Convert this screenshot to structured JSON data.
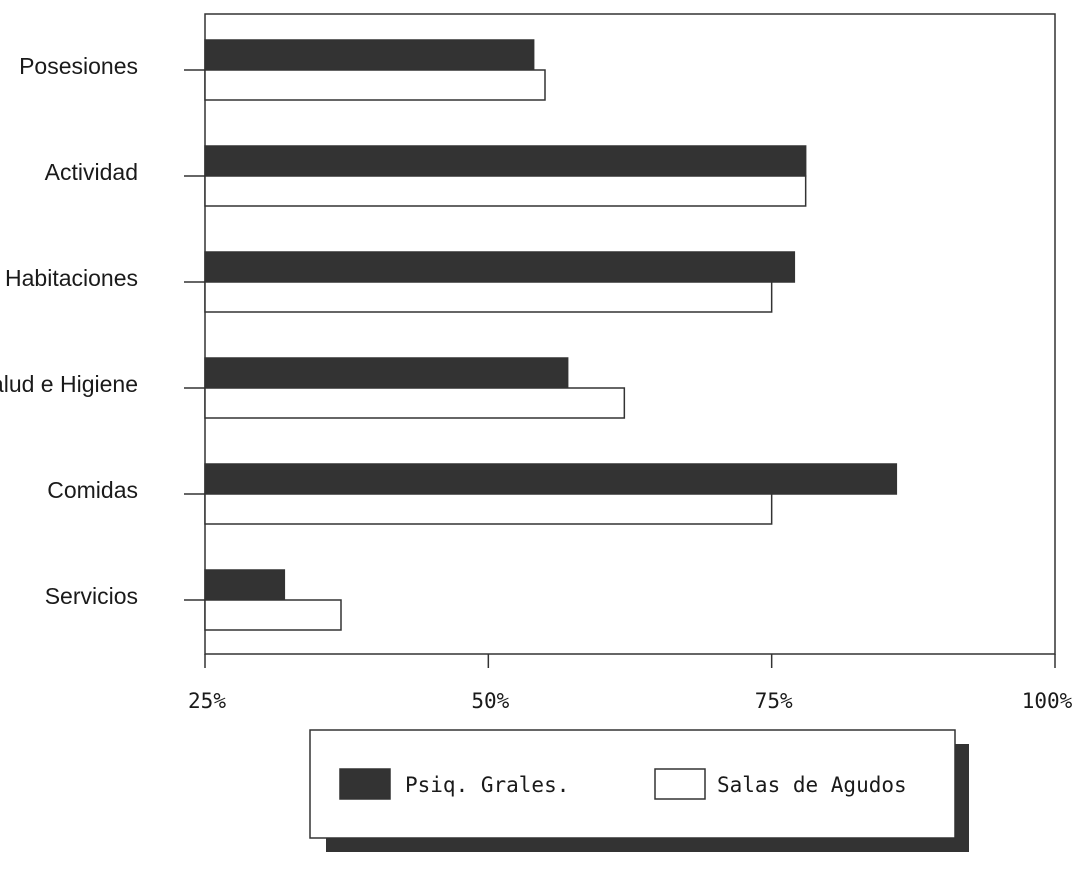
{
  "chart_data": {
    "type": "bar",
    "orientation": "horizontal",
    "categories": [
      "Posesiones",
      "Actividad",
      "Habitaciones",
      "Salud e Higiene",
      "Comidas",
      "Servicios"
    ],
    "series": [
      {
        "name": "Psiq. Grales.",
        "color": "#333333",
        "values": [
          54,
          78,
          77,
          57,
          86,
          32
        ]
      },
      {
        "name": "Salas de Agudos",
        "color": "#ffffff",
        "values": [
          55,
          78,
          75,
          62,
          75,
          37
        ]
      }
    ],
    "xlim": [
      25,
      100
    ],
    "x_ticks": [
      25,
      50,
      75,
      100
    ],
    "x_tick_labels": [
      "25%",
      "50%",
      "75%",
      "100%"
    ],
    "title": "",
    "xlabel": "",
    "ylabel": "",
    "grid": false,
    "legend_position": "bottom"
  }
}
